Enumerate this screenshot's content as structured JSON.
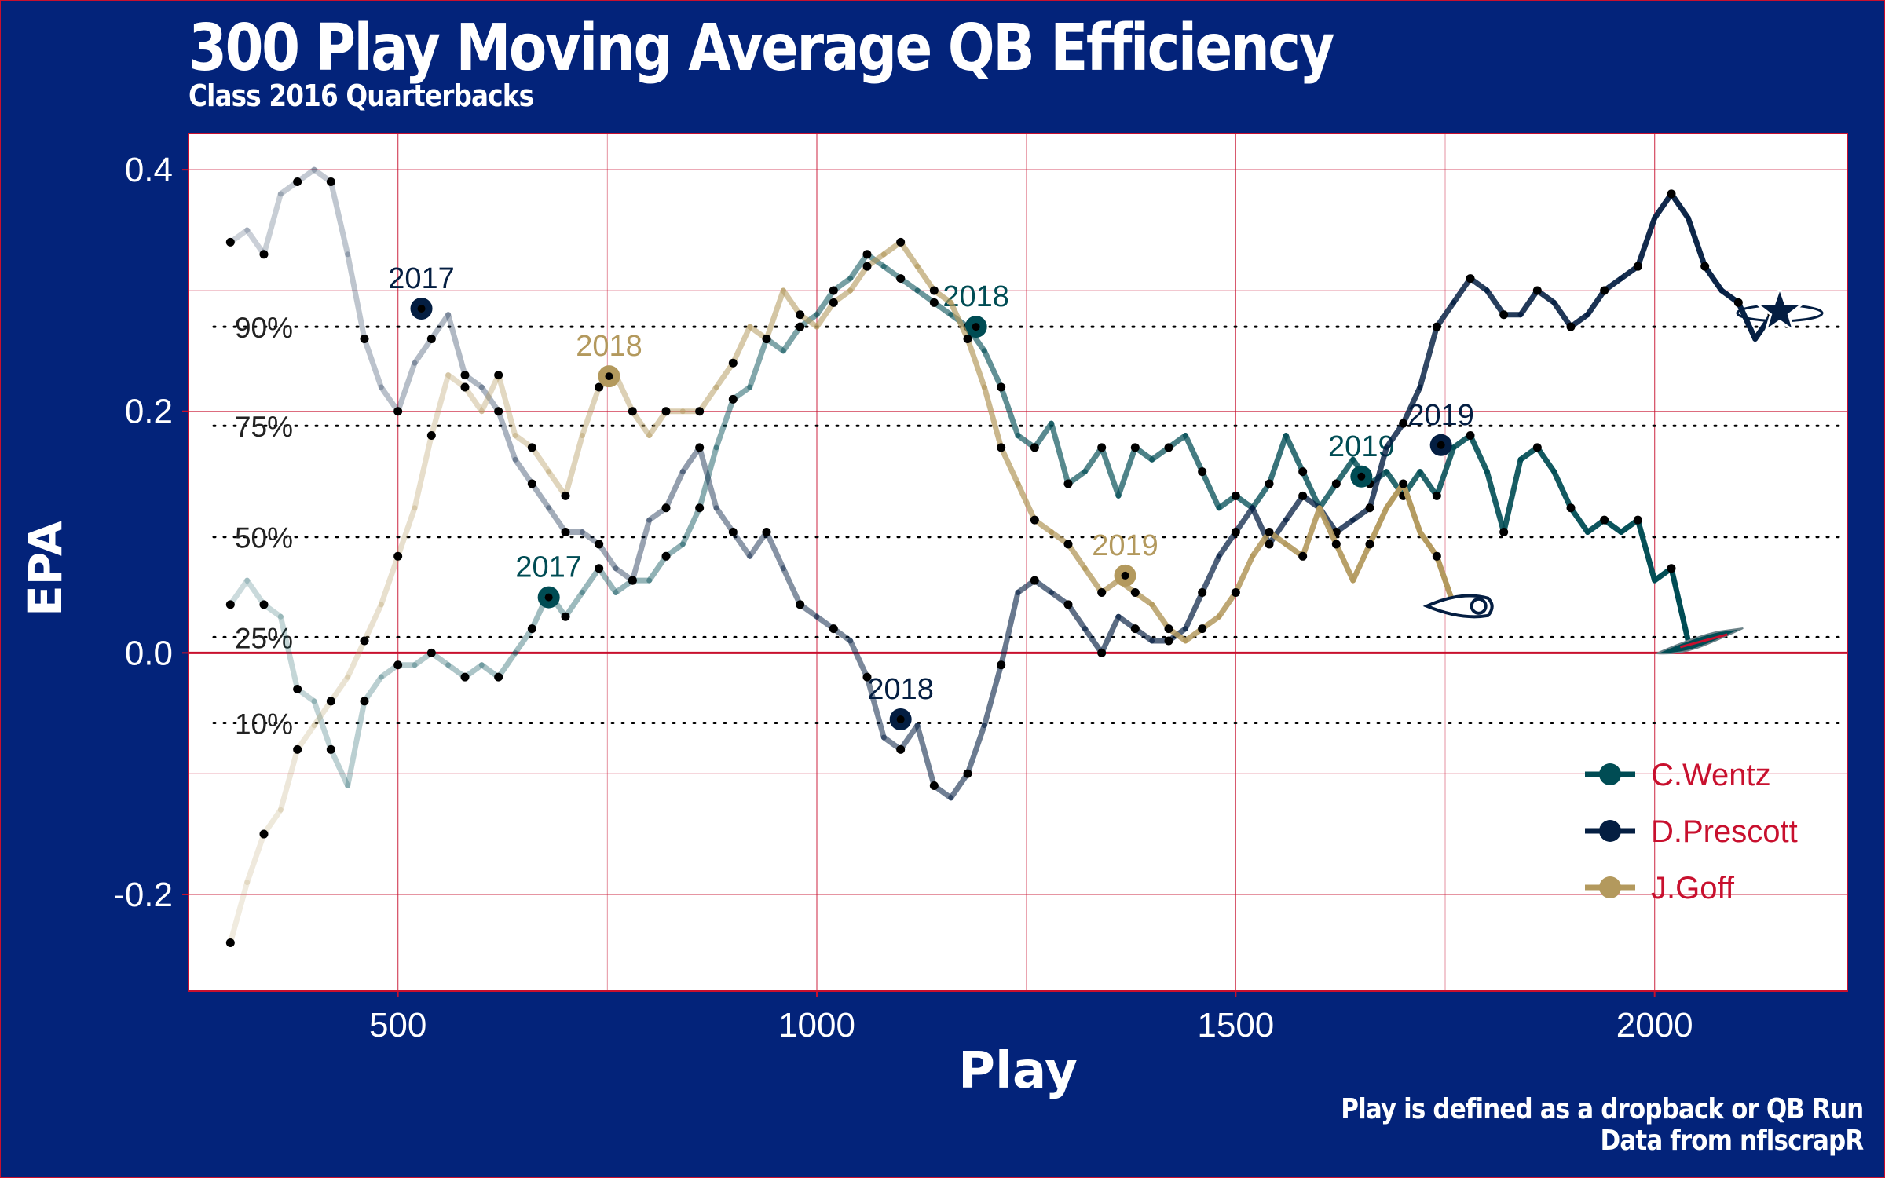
{
  "title": "300 Play Moving Average QB Efficiency",
  "subtitle": "Class 2016 Quarterbacks",
  "caption": [
    "Play is defined as a dropback or QB Run",
    "Data from nflscrapR"
  ],
  "colors": {
    "background": "#03237a",
    "panel": "#ffffff",
    "grid": "#c8102e",
    "wentz": "#004c54",
    "prescott": "#041e42",
    "goff": "#b3995d"
  },
  "icons": {
    "wentz_end": "eagles-logo-icon",
    "prescott_end": "cowboys-star-icon",
    "goff_end": "rams-logo-icon"
  },
  "chart_data": {
    "type": "line",
    "xlabel": "Play",
    "ylabel": "EPA",
    "xlim": [
      250,
      2230
    ],
    "ylim": [
      -0.28,
      0.43
    ],
    "xticks": [
      500,
      1000,
      1500,
      2000
    ],
    "yticks": [
      -0.2,
      0.0,
      0.2,
      0.4
    ],
    "ytick_labels": [
      "-0.2",
      "0.0",
      "0.2",
      "0.4"
    ],
    "grid": true,
    "legend_position": "bottom-right",
    "reference_lines": [
      {
        "label": "90%",
        "y": 0.27
      },
      {
        "label": "75%",
        "y": 0.188
      },
      {
        "label": "50%",
        "y": 0.096
      },
      {
        "label": "25%",
        "y": 0.013
      },
      {
        "label": "10%",
        "y": -0.058
      }
    ],
    "series": [
      {
        "name": "C.Wentz",
        "color": "#004c54",
        "x": [
          300,
          320,
          340,
          360,
          380,
          400,
          420,
          440,
          460,
          480,
          500,
          520,
          540,
          560,
          580,
          600,
          620,
          640,
          660,
          680,
          700,
          720,
          740,
          760,
          780,
          800,
          820,
          840,
          860,
          880,
          900,
          920,
          940,
          960,
          980,
          1000,
          1020,
          1040,
          1060,
          1080,
          1100,
          1120,
          1140,
          1160,
          1180,
          1200,
          1220,
          1240,
          1260,
          1280,
          1300,
          1320,
          1340,
          1360,
          1380,
          1400,
          1420,
          1440,
          1460,
          1480,
          1500,
          1520,
          1540,
          1560,
          1580,
          1600,
          1620,
          1640,
          1660,
          1680,
          1700,
          1720,
          1740,
          1760,
          1780,
          1800,
          1820,
          1840,
          1860,
          1880,
          1900,
          1920,
          1940,
          1960,
          1980,
          2000,
          2020,
          2040
        ],
        "y": [
          0.04,
          0.06,
          0.04,
          0.03,
          -0.03,
          -0.04,
          -0.08,
          -0.11,
          -0.04,
          -0.02,
          -0.01,
          -0.01,
          0.0,
          -0.01,
          -0.02,
          -0.01,
          -0.02,
          0.0,
          0.02,
          0.05,
          0.03,
          0.05,
          0.07,
          0.05,
          0.06,
          0.06,
          0.08,
          0.09,
          0.12,
          0.17,
          0.21,
          0.22,
          0.26,
          0.25,
          0.27,
          0.28,
          0.3,
          0.31,
          0.33,
          0.32,
          0.31,
          0.3,
          0.29,
          0.28,
          0.27,
          0.25,
          0.22,
          0.18,
          0.17,
          0.19,
          0.14,
          0.15,
          0.17,
          0.13,
          0.17,
          0.16,
          0.17,
          0.18,
          0.15,
          0.12,
          0.13,
          0.12,
          0.14,
          0.18,
          0.15,
          0.12,
          0.14,
          0.16,
          0.14,
          0.15,
          0.13,
          0.15,
          0.13,
          0.17,
          0.18,
          0.15,
          0.1,
          0.16,
          0.17,
          0.15,
          0.12,
          0.1,
          0.11,
          0.1,
          0.11,
          0.06,
          0.07,
          0.01
        ],
        "labels": [
          {
            "x": 680,
            "y": 0.046,
            "text": "2017"
          },
          {
            "x": 1190,
            "y": 0.27,
            "text": "2018"
          },
          {
            "x": 1650,
            "y": 0.146,
            "text": "2019"
          }
        ]
      },
      {
        "name": "D.Prescott",
        "color": "#041e42",
        "x": [
          300,
          320,
          340,
          360,
          380,
          400,
          420,
          440,
          460,
          480,
          500,
          520,
          540,
          560,
          580,
          600,
          620,
          640,
          660,
          680,
          700,
          720,
          740,
          760,
          780,
          800,
          820,
          840,
          860,
          880,
          900,
          920,
          940,
          960,
          980,
          1000,
          1020,
          1040,
          1060,
          1080,
          1100,
          1120,
          1140,
          1160,
          1180,
          1200,
          1220,
          1240,
          1260,
          1280,
          1300,
          1320,
          1340,
          1360,
          1380,
          1400,
          1420,
          1440,
          1460,
          1480,
          1500,
          1520,
          1540,
          1560,
          1580,
          1600,
          1620,
          1640,
          1660,
          1680,
          1700,
          1720,
          1740,
          1760,
          1780,
          1800,
          1820,
          1840,
          1860,
          1880,
          1900,
          1920,
          1940,
          1960,
          1980,
          2000,
          2020,
          2040,
          2060,
          2080,
          2100,
          2120,
          2140
        ],
        "y": [
          0.34,
          0.35,
          0.33,
          0.38,
          0.39,
          0.4,
          0.39,
          0.33,
          0.26,
          0.22,
          0.2,
          0.24,
          0.26,
          0.28,
          0.23,
          0.22,
          0.2,
          0.16,
          0.14,
          0.12,
          0.1,
          0.1,
          0.09,
          0.07,
          0.06,
          0.11,
          0.12,
          0.15,
          0.17,
          0.12,
          0.1,
          0.08,
          0.1,
          0.07,
          0.04,
          0.03,
          0.02,
          0.01,
          -0.02,
          -0.07,
          -0.08,
          -0.06,
          -0.11,
          -0.12,
          -0.1,
          -0.06,
          -0.01,
          0.05,
          0.06,
          0.05,
          0.04,
          0.02,
          0.0,
          0.03,
          0.02,
          0.01,
          0.01,
          0.02,
          0.05,
          0.08,
          0.1,
          0.12,
          0.09,
          0.11,
          0.13,
          0.12,
          0.1,
          0.11,
          0.12,
          0.17,
          0.19,
          0.22,
          0.27,
          0.29,
          0.31,
          0.3,
          0.28,
          0.28,
          0.3,
          0.29,
          0.27,
          0.28,
          0.3,
          0.31,
          0.32,
          0.36,
          0.38,
          0.36,
          0.32,
          0.3,
          0.29,
          0.26,
          0.28
        ],
        "labels": [
          {
            "x": 528,
            "y": 0.285,
            "text": "2017"
          },
          {
            "x": 1100,
            "y": -0.055,
            "text": "2018"
          },
          {
            "x": 1745,
            "y": 0.172,
            "text": "2019"
          }
        ]
      },
      {
        "name": "J.Goff",
        "color": "#b3995d",
        "x": [
          300,
          320,
          340,
          360,
          380,
          400,
          420,
          440,
          460,
          480,
          500,
          520,
          540,
          560,
          580,
          600,
          620,
          640,
          660,
          680,
          700,
          720,
          740,
          760,
          780,
          800,
          820,
          840,
          860,
          880,
          900,
          920,
          940,
          960,
          980,
          1000,
          1020,
          1040,
          1060,
          1080,
          1100,
          1120,
          1140,
          1160,
          1180,
          1200,
          1220,
          1240,
          1260,
          1280,
          1300,
          1320,
          1340,
          1360,
          1380,
          1400,
          1420,
          1440,
          1460,
          1480,
          1500,
          1520,
          1540,
          1560,
          1580,
          1600,
          1620,
          1640,
          1660,
          1680,
          1700,
          1720,
          1740,
          1760
        ],
        "y": [
          -0.24,
          -0.19,
          -0.15,
          -0.13,
          -0.08,
          -0.06,
          -0.04,
          -0.02,
          0.01,
          0.04,
          0.08,
          0.12,
          0.18,
          0.23,
          0.22,
          0.2,
          0.23,
          0.18,
          0.17,
          0.15,
          0.13,
          0.18,
          0.22,
          0.23,
          0.2,
          0.18,
          0.2,
          0.2,
          0.2,
          0.22,
          0.24,
          0.27,
          0.26,
          0.3,
          0.28,
          0.27,
          0.29,
          0.3,
          0.32,
          0.33,
          0.34,
          0.32,
          0.3,
          0.29,
          0.26,
          0.22,
          0.17,
          0.14,
          0.11,
          0.1,
          0.09,
          0.07,
          0.05,
          0.06,
          0.05,
          0.04,
          0.02,
          0.01,
          0.02,
          0.03,
          0.05,
          0.08,
          0.1,
          0.09,
          0.08,
          0.12,
          0.09,
          0.06,
          0.09,
          0.12,
          0.14,
          0.1,
          0.08,
          0.04
        ],
        "labels": [
          {
            "x": 752,
            "y": 0.229,
            "text": "2018"
          },
          {
            "x": 1368,
            "y": 0.064,
            "text": "2019"
          }
        ]
      }
    ]
  }
}
